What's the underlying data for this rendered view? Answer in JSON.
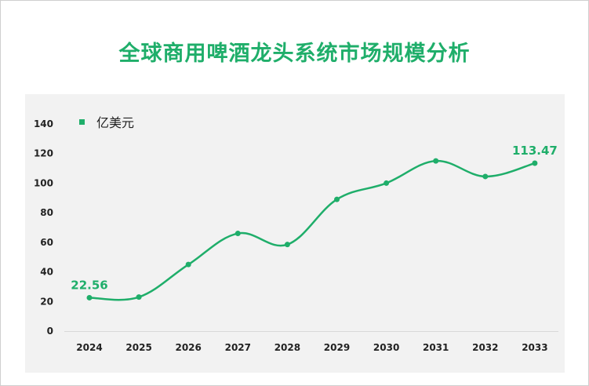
{
  "page": {
    "title": "全球商用啤酒龙头系统市场规模分析"
  },
  "colors": {
    "accent": "#1fae6a",
    "plot_bg": "#f2f2f2"
  },
  "chart_data": {
    "type": "line",
    "title": "全球商用啤酒龙头系统市场规模分析",
    "x": [
      "2024",
      "2025",
      "2026",
      "2027",
      "2028",
      "2029",
      "2030",
      "2031",
      "2032",
      "2033"
    ],
    "series": [
      {
        "name": "亿美元",
        "values": [
          22.56,
          23,
          45,
          66,
          58.5,
          89,
          100,
          115,
          104.5,
          113.47
        ]
      }
    ],
    "data_labels": [
      {
        "index": 0,
        "text": "22.56"
      },
      {
        "index": 9,
        "text": "113.47"
      }
    ],
    "ylim": [
      0,
      140
    ],
    "yticks": [
      0,
      20,
      40,
      60,
      80,
      100,
      120,
      140
    ],
    "legend": "top-left",
    "grid": false,
    "smooth": true
  }
}
